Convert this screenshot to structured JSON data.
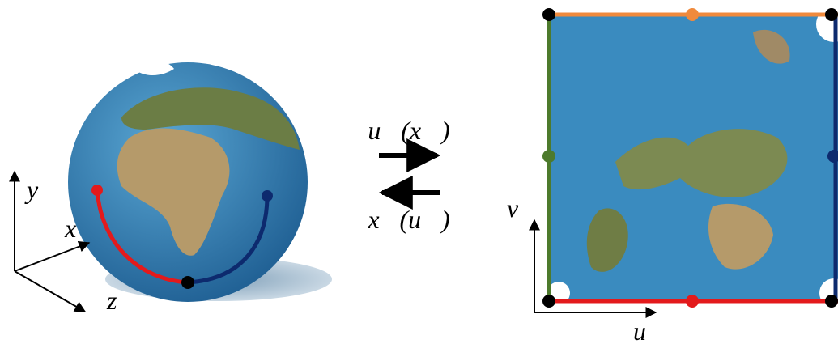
{
  "globe_axes": {
    "y": "y",
    "x": "x",
    "z": "z"
  },
  "arrows": {
    "forward": "u⃗(x⃗)",
    "backward": "x⃗(u⃗)"
  },
  "map_axes": {
    "v": "v",
    "u": "u"
  }
}
